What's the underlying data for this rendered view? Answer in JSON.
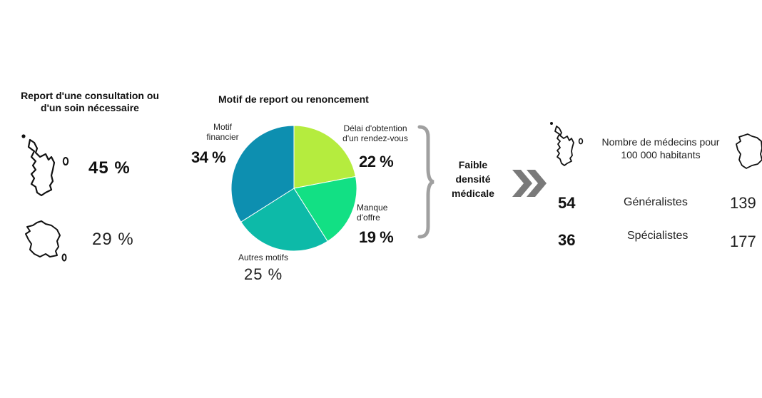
{
  "left": {
    "title_line1": "Report d'une consultation ou",
    "title_line2": "d'un soin nécessaire",
    "mayotte_value": "45 %",
    "france_value": "29 %"
  },
  "chart_data": {
    "type": "pie",
    "title": "Motif de report ou renoncement",
    "slices": [
      {
        "label": "Délai d'obtention d'un rendez-vous",
        "value": 22,
        "color": "#b5ec3e"
      },
      {
        "label": "Manque d'offre",
        "value": 19,
        "color": "#12e084"
      },
      {
        "label": "Autres motifs",
        "value": 25,
        "color": "#0dbaa8"
      },
      {
        "label": "Motif financier",
        "value": 34,
        "color": "#0d8fb0"
      }
    ]
  },
  "pie_labels": {
    "financier_line1": "Motif",
    "financier_line2": "financier",
    "financier_pct": "34 %",
    "delai_line1": "Délai d'obtention",
    "delai_line2": "d'un rendez-vous",
    "delai_pct": "22 %",
    "manque_line1": "Manque",
    "manque_line2": "d'offre",
    "manque_pct": "19 %",
    "autres_line1": "Autres motifs",
    "autres_pct": "25 %"
  },
  "conclusion": {
    "line1": "Faible",
    "line2": "densité",
    "line3": "médicale"
  },
  "right": {
    "header_line1": "Nombre de médecins pour",
    "header_line2": "100 000 habitants",
    "rows": [
      {
        "mayotte": "54",
        "label": "Généralistes",
        "france": "139"
      },
      {
        "mayotte": "36",
        "label": "Spécialistes",
        "france": "177"
      }
    ]
  },
  "colors": {
    "brace": "#a0a0a0",
    "chevrons": "#7a7a7a"
  },
  "icons": [
    "mayotte-map-icon",
    "france-map-icon",
    "double-chevron-icon",
    "curly-brace"
  ]
}
